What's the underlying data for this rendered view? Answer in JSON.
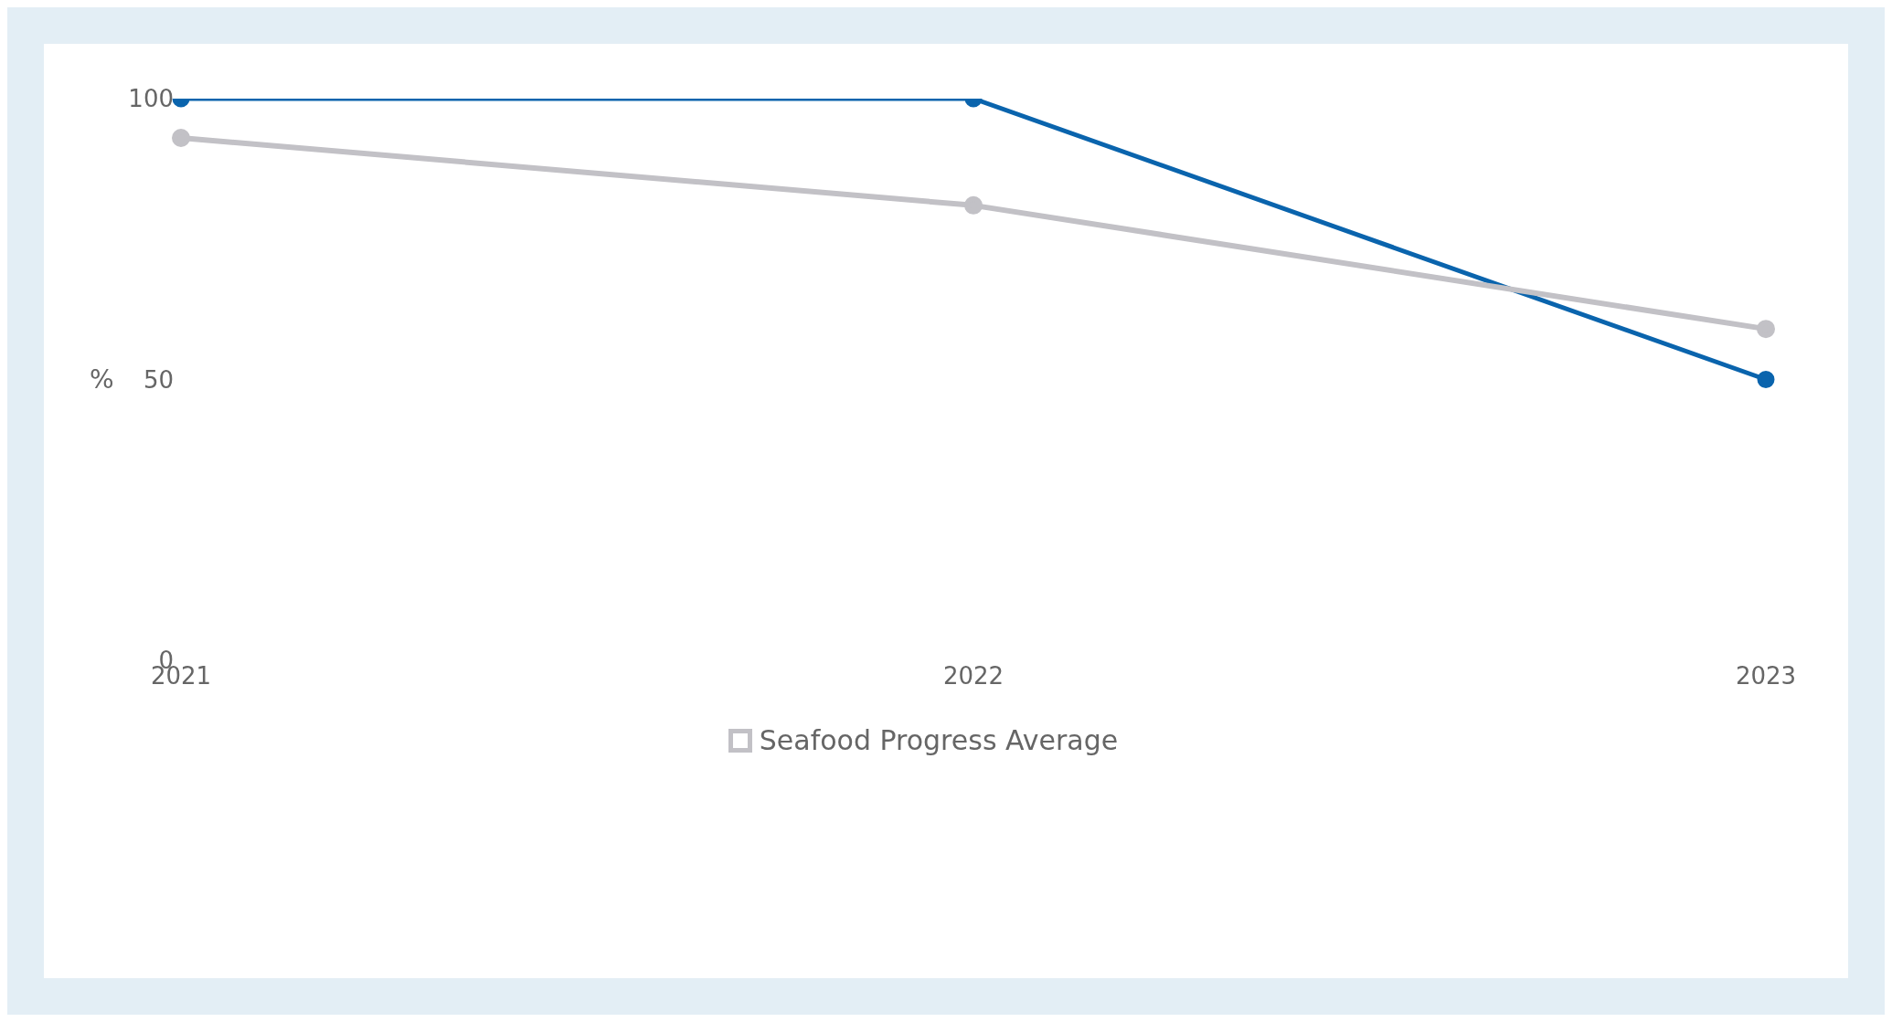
{
  "chart_data": {
    "type": "line",
    "ylabel": "%",
    "categories": [
      "2021",
      "2022",
      "2023"
    ],
    "series": [
      {
        "color": "#0a64ad",
        "values": [
          100,
          100,
          50
        ]
      },
      {
        "name": "Seafood Progress Average",
        "color": "#c2c1c6",
        "values": [
          93,
          81,
          59
        ]
      }
    ],
    "ylim": [
      0,
      100
    ],
    "yticks": [
      0,
      50,
      100
    ],
    "grid": false,
    "legend": "bottom",
    "marker": "circle",
    "line_style": "solid"
  }
}
